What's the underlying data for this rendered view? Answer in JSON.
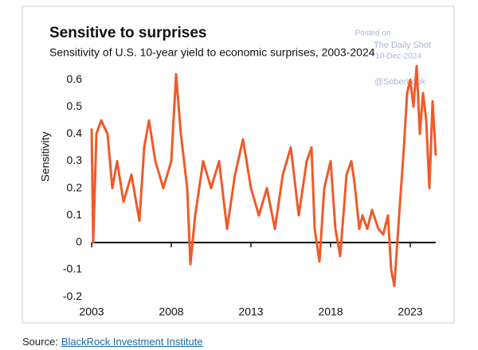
{
  "chart_data": {
    "type": "line",
    "title": "Sensitive to surprises",
    "subtitle": "Sensitivity of U.S. 10-year yield to economic surprises, 2003-2024",
    "y_label": "Sensitivity",
    "x": [
      2003.0,
      2003.1,
      2003.3,
      2003.6,
      2004.0,
      2004.3,
      2004.6,
      2005.0,
      2005.5,
      2006.0,
      2006.3,
      2006.6,
      2007.0,
      2007.5,
      2008.0,
      2008.3,
      2008.6,
      2009.0,
      2009.2,
      2009.5,
      2010.0,
      2010.5,
      2011.0,
      2011.5,
      2012.0,
      2012.5,
      2013.0,
      2013.5,
      2014.0,
      2014.5,
      2015.0,
      2015.5,
      2016.0,
      2016.5,
      2016.8,
      2017.0,
      2017.3,
      2017.6,
      2018.0,
      2018.3,
      2018.6,
      2019.0,
      2019.3,
      2019.5,
      2019.8,
      2020.0,
      2020.3,
      2020.6,
      2021.0,
      2021.3,
      2021.6,
      2021.8,
      2022.0,
      2022.3,
      2022.6,
      2022.8,
      2023.0,
      2023.2,
      2023.4,
      2023.6,
      2023.8,
      2024.0,
      2024.2,
      2024.4,
      2024.6
    ],
    "series": [
      {
        "name": "Sensitivity",
        "color": "#f05a28",
        "values": [
          0.42,
          0.0,
          0.4,
          0.45,
          0.4,
          0.2,
          0.3,
          0.15,
          0.25,
          0.08,
          0.35,
          0.45,
          0.3,
          0.2,
          0.3,
          0.62,
          0.4,
          0.2,
          -0.08,
          0.1,
          0.3,
          0.2,
          0.3,
          0.05,
          0.25,
          0.38,
          0.2,
          0.1,
          0.2,
          0.05,
          0.25,
          0.35,
          0.1,
          0.3,
          0.35,
          0.05,
          -0.07,
          0.2,
          0.3,
          0.05,
          -0.05,
          0.25,
          0.3,
          0.22,
          0.05,
          0.1,
          0.05,
          0.12,
          0.05,
          0.03,
          0.1,
          -0.1,
          -0.16,
          0.1,
          0.35,
          0.55,
          0.6,
          0.5,
          0.65,
          0.4,
          0.55,
          0.45,
          0.2,
          0.52,
          0.32
        ]
      }
    ],
    "xlim": [
      2003,
      2024.6
    ],
    "xticks": [
      2003,
      2008,
      2013,
      2018,
      2023
    ],
    "ylim": [
      -0.22,
      0.65
    ],
    "yticks": [
      0.6,
      0.5,
      0.4,
      0.3,
      0.2,
      0.1,
      0,
      -0.1,
      -0.2
    ]
  },
  "watermark": [
    "Posted on",
    "The Daily Shot",
    "10-Dec-2024",
    "@SoberLook"
  ],
  "source": {
    "prefix": "Source:",
    "link": "BlackRock Investment Institute"
  }
}
